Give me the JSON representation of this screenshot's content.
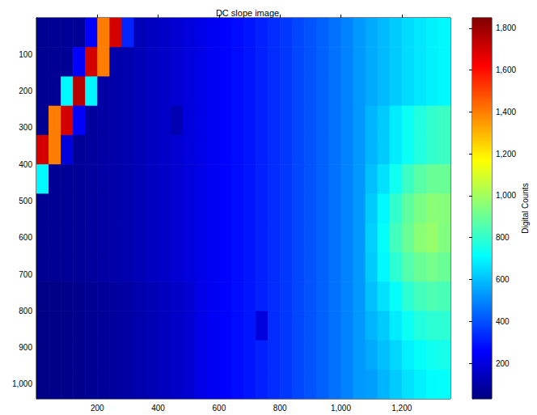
{
  "chart_data": {
    "type": "heatmap",
    "title": "DC slope image",
    "x": [
      20,
      60,
      100,
      140,
      180,
      220,
      260,
      300,
      340,
      380,
      420,
      460,
      500,
      540,
      580,
      620,
      660,
      700,
      740,
      780,
      820,
      860,
      900,
      940,
      980,
      1020,
      1060,
      1100,
      1140,
      1180,
      1220,
      1260,
      1300,
      1340
    ],
    "y": [
      40,
      120,
      200,
      280,
      360,
      440,
      520,
      600,
      680,
      760,
      840,
      920,
      1000
    ],
    "values": [
      [
        60,
        65,
        70,
        75,
        250,
        1400,
        1700,
        320,
        130,
        145,
        160,
        175,
        195,
        215,
        235,
        255,
        275,
        295,
        315,
        335,
        355,
        380,
        405,
        430,
        460,
        490,
        530,
        560,
        590,
        620,
        650,
        670,
        690,
        700
      ],
      [
        60,
        65,
        70,
        250,
        1700,
        1400,
        105,
        115,
        130,
        145,
        160,
        175,
        195,
        215,
        235,
        255,
        275,
        295,
        315,
        335,
        355,
        380,
        405,
        430,
        460,
        490,
        530,
        560,
        590,
        620,
        650,
        670,
        690,
        700
      ],
      [
        60,
        65,
        700,
        1750,
        700,
        95,
        105,
        115,
        130,
        145,
        160,
        175,
        195,
        215,
        235,
        255,
        275,
        295,
        315,
        335,
        355,
        380,
        405,
        430,
        460,
        490,
        530,
        560,
        590,
        620,
        650,
        670,
        690,
        700
      ],
      [
        60,
        1400,
        1700,
        250,
        85,
        95,
        105,
        115,
        130,
        145,
        160,
        120,
        195,
        215,
        235,
        255,
        275,
        295,
        315,
        335,
        355,
        380,
        405,
        430,
        460,
        490,
        530,
        580,
        620,
        680,
        730,
        770,
        800,
        820
      ],
      [
        1700,
        1400,
        200,
        75,
        85,
        95,
        105,
        115,
        130,
        145,
        160,
        175,
        195,
        215,
        235,
        255,
        275,
        295,
        315,
        335,
        355,
        380,
        405,
        430,
        460,
        490,
        530,
        580,
        620,
        680,
        730,
        770,
        800,
        820
      ],
      [
        700,
        65,
        70,
        75,
        85,
        95,
        105,
        115,
        130,
        145,
        160,
        175,
        195,
        215,
        235,
        255,
        275,
        295,
        315,
        335,
        355,
        380,
        405,
        430,
        460,
        490,
        530,
        600,
        660,
        740,
        820,
        870,
        900,
        900
      ],
      [
        60,
        65,
        70,
        75,
        85,
        95,
        105,
        115,
        130,
        145,
        160,
        175,
        195,
        215,
        235,
        255,
        275,
        295,
        315,
        335,
        355,
        380,
        405,
        430,
        460,
        490,
        530,
        620,
        700,
        800,
        880,
        930,
        960,
        950
      ],
      [
        60,
        65,
        70,
        75,
        85,
        95,
        105,
        115,
        130,
        145,
        160,
        175,
        195,
        215,
        235,
        255,
        275,
        295,
        315,
        335,
        355,
        380,
        405,
        430,
        460,
        490,
        530,
        630,
        720,
        830,
        900,
        960,
        980,
        940
      ],
      [
        60,
        65,
        70,
        75,
        85,
        95,
        105,
        115,
        130,
        145,
        160,
        175,
        195,
        215,
        235,
        255,
        275,
        295,
        315,
        335,
        355,
        380,
        405,
        430,
        460,
        490,
        530,
        620,
        700,
        790,
        860,
        900,
        920,
        900
      ],
      [
        40,
        45,
        50,
        55,
        65,
        75,
        85,
        95,
        110,
        125,
        140,
        155,
        175,
        215,
        235,
        255,
        275,
        295,
        315,
        335,
        355,
        380,
        405,
        430,
        460,
        490,
        530,
        600,
        660,
        720,
        790,
        830,
        850,
        840
      ],
      [
        40,
        45,
        50,
        55,
        65,
        75,
        85,
        95,
        110,
        125,
        140,
        155,
        175,
        215,
        235,
        255,
        275,
        295,
        200,
        335,
        355,
        380,
        405,
        430,
        460,
        490,
        530,
        580,
        620,
        680,
        730,
        770,
        790,
        790
      ],
      [
        40,
        45,
        50,
        55,
        65,
        75,
        85,
        95,
        110,
        125,
        140,
        155,
        175,
        215,
        235,
        255,
        275,
        295,
        315,
        335,
        355,
        380,
        405,
        430,
        460,
        490,
        530,
        560,
        600,
        640,
        690,
        720,
        740,
        750
      ],
      [
        40,
        45,
        50,
        55,
        65,
        75,
        85,
        95,
        110,
        125,
        140,
        155,
        175,
        215,
        235,
        255,
        275,
        295,
        315,
        335,
        355,
        380,
        405,
        430,
        460,
        490,
        530,
        540,
        580,
        620,
        660,
        690,
        710,
        720
      ]
    ],
    "xlim": [
      0,
      1360
    ],
    "xticks": [
      200,
      400,
      600,
      800,
      1000,
      1200
    ],
    "ylim": [
      0,
      1040
    ],
    "yticks": [
      100,
      200,
      300,
      400,
      500,
      600,
      700,
      800,
      900,
      1000
    ],
    "colorbar": {
      "label": "Digital Counts",
      "range": [
        30,
        1850
      ],
      "ticks": [
        200,
        400,
        600,
        800,
        1000,
        1200,
        1400,
        1600,
        1800
      ]
    }
  }
}
